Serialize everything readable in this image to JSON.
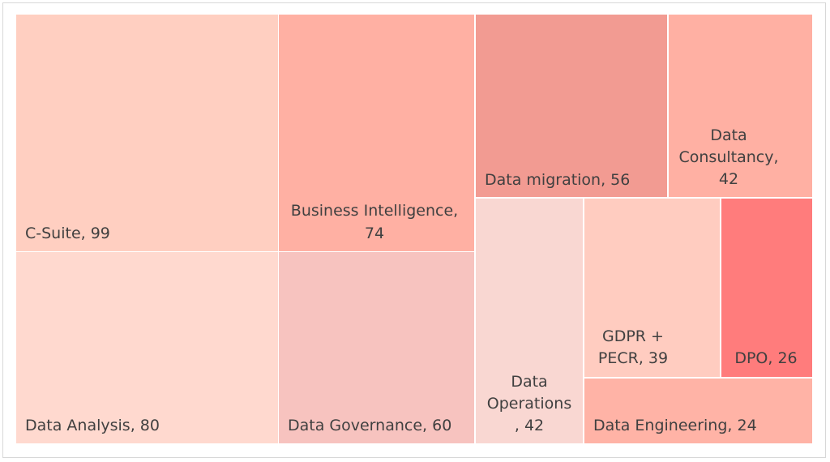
{
  "chart_data": {
    "type": "treemap",
    "title": "",
    "items": [
      {
        "label": "C-Suite, 99",
        "name": "C-Suite",
        "value": 99,
        "color": "#FFCFC1"
      },
      {
        "label": "Data Analysis, 80",
        "name": "Data Analysis",
        "value": 80,
        "color": "#FFD9CF"
      },
      {
        "label": "Business Intelligence, 74",
        "name": "Business Intelligence",
        "value": 74,
        "color": "#FFB0A3"
      },
      {
        "label": "Data Governance, 60",
        "name": "Data Governance",
        "value": 60,
        "color": "#F7C3BF"
      },
      {
        "label": "Data migration, 56",
        "name": "Data migration",
        "value": 56,
        "color": "#F29B92"
      },
      {
        "label": "Data Consultancy, 42",
        "name": "Data Consultancy",
        "value": 42,
        "color": "#FFB0A3"
      },
      {
        "label": "Data Operations, 42",
        "name": "Data Operations",
        "value": 42,
        "color": "#F9D7D2"
      },
      {
        "label": "GDPR + PECR, 39",
        "name": "GDPR + PECR",
        "value": 39,
        "color": "#FFCCC0"
      },
      {
        "label": "DPO, 26",
        "name": "DPO",
        "value": 26,
        "color": "#FF7C7C"
      },
      {
        "label": "Data Engineering, 24",
        "name": "Data Engineering",
        "value": 24,
        "color": "#FFB3A6"
      }
    ]
  }
}
